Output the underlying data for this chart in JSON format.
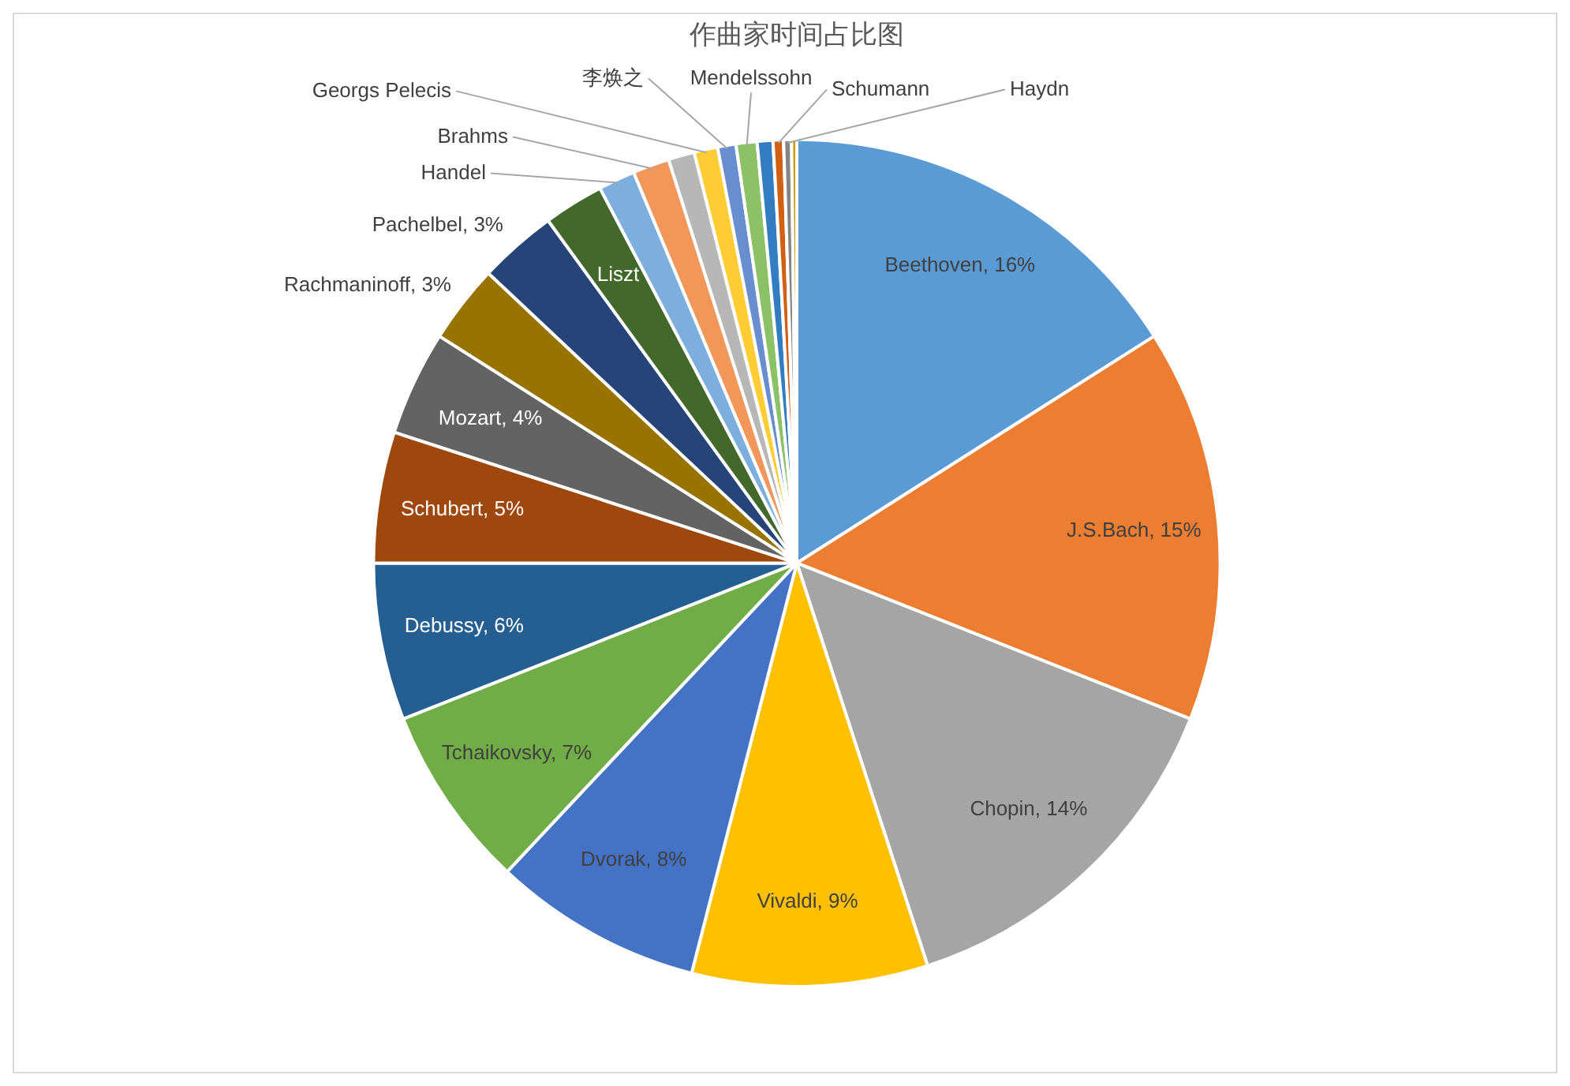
{
  "chart_data": {
    "type": "pie",
    "title": "作曲家时间占比图",
    "categories": [
      "Beethoven",
      "J.S.Bach",
      "Chopin",
      "Vivaldi",
      "Dvorak",
      "Tchaikovsky",
      "Debussy",
      "Schubert",
      "Mozart",
      "Rachmaninoff",
      "Pachelbel",
      "Liszt",
      "Handel",
      "Brahms",
      null,
      "Georgs Pelecis",
      "李焕之",
      "Mendelssohn",
      null,
      "Schumann",
      "Haydn",
      null
    ],
    "values": [
      16,
      15,
      14,
      9,
      8,
      7,
      6,
      5,
      4,
      3,
      3,
      2.3,
      1.4,
      1.4,
      1.0,
      0.9,
      0.7,
      0.8,
      0.6,
      0.4,
      0.3,
      0.2
    ],
    "value_labels": [
      "16%",
      "15%",
      "14%",
      "9%",
      "8%",
      "7%",
      "6%",
      "5%",
      "4%",
      "3%",
      "3%",
      null,
      null,
      null,
      null,
      null,
      null,
      null,
      null,
      null,
      null,
      null
    ],
    "colors": [
      "#5b9bd5",
      "#ed7d31",
      "#a5a5a5",
      "#ffc000",
      "#4472c4",
      "#70ad47",
      "#255e91",
      "#9e480e",
      "#636363",
      "#997300",
      "#264478",
      "#43682b",
      "#7cafdd",
      "#f1975a",
      "#b7b7b7",
      "#ffcd33",
      "#698ed0",
      "#8cc168",
      "#327dc2",
      "#d26012",
      "#848484",
      "#cc9a00"
    ]
  }
}
